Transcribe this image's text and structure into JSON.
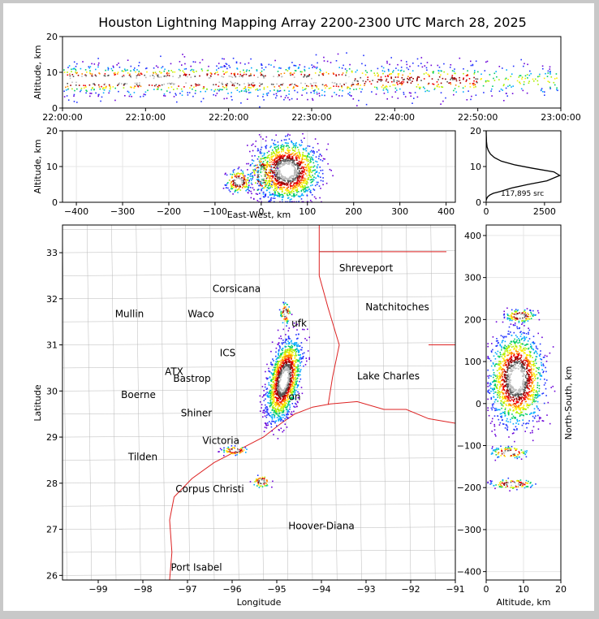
{
  "title": "Houston Lightning Mapping Array 2200-2300 UTC March 28, 2025",
  "colors": {
    "density": [
      "#6a00d8",
      "#2233ff",
      "#00aaff",
      "#00cc66",
      "#aaee00",
      "#ffee00",
      "#ff8800",
      "#ee0000",
      "#990000",
      "#555555",
      "#bbbbbb",
      "#ffffff"
    ],
    "coast": "#dd2222",
    "counties": "#b8b8b8",
    "grid": "#e6e6e6"
  },
  "chart_data": [
    {
      "type": "scatter",
      "name": "time-height",
      "xlabel": "",
      "ylabel": "Altitude, km",
      "xticks": [
        "22:00:00",
        "22:10:00",
        "22:20:00",
        "22:30:00",
        "22:40:00",
        "22:50:00",
        "23:00:00"
      ],
      "xlim_minutes": [
        0,
        60
      ],
      "ylim": [
        0,
        20
      ],
      "yticks": [
        0,
        10,
        20
      ]
    },
    {
      "type": "scatter",
      "name": "east-west-altitude",
      "xlabel": "East-West, km",
      "ylabel": "Altitude, km",
      "xlim": [
        -430,
        420
      ],
      "xticks": [
        -400,
        -300,
        -200,
        -100,
        0,
        100,
        200,
        300,
        400
      ],
      "ylim": [
        0,
        20
      ],
      "yticks": [
        0,
        10,
        20
      ]
    },
    {
      "type": "line",
      "name": "altitude-histogram",
      "annotation": "117,895 src",
      "xlim": [
        0,
        3200
      ],
      "xticks": [
        0,
        2500
      ],
      "ylim": [
        0,
        20
      ],
      "yticks": [
        0,
        10,
        20
      ],
      "x": [
        0,
        20,
        60,
        150,
        300,
        600,
        1100,
        1800,
        2600,
        3150,
        2900,
        2000,
        1200,
        650,
        350,
        180,
        90,
        40,
        15,
        5,
        0
      ],
      "y": [
        0.5,
        1,
        1.5,
        2,
        2.5,
        3,
        4,
        5,
        6,
        7.5,
        8.5,
        9.5,
        10.5,
        11.5,
        12.5,
        13.5,
        14.5,
        15.5,
        17,
        19,
        20
      ]
    },
    {
      "type": "scatter",
      "name": "plan-view",
      "xlabel": "Longitude",
      "ylabel": "Latitude",
      "xlim": [
        -99.8,
        -91
      ],
      "ylim": [
        25.9,
        33.6
      ],
      "xticks": [
        -99,
        -98,
        -97,
        -96,
        -95,
        -94,
        -93,
        -92,
        -91
      ],
      "yticks": [
        26,
        27,
        28,
        29,
        30,
        31,
        32,
        33
      ]
    },
    {
      "type": "scatter",
      "name": "altitude-north-south",
      "xlabel": "Altitude, km",
      "ylabel": "North-South, km",
      "xlim": [
        0,
        20
      ],
      "xticks": [
        0,
        10,
        20
      ],
      "ylim": [
        -420,
        425
      ],
      "yticks": [
        -400,
        -300,
        -200,
        -100,
        0,
        100,
        200,
        300,
        400
      ]
    }
  ],
  "map_labels": [
    {
      "text": "Shreveport",
      "lon": -93.0,
      "lat": 32.6,
      "color": "#000000"
    },
    {
      "text": "Corsicana",
      "lon": -95.9,
      "lat": 32.15,
      "color": "#000000"
    },
    {
      "text": "Natchitoches",
      "lon": -92.3,
      "lat": 31.75,
      "color": "#000000"
    },
    {
      "text": "Mullin",
      "lon": -98.3,
      "lat": 31.6,
      "color": "#ff8c3a"
    },
    {
      "text": "Waco",
      "lon": -96.7,
      "lat": 31.6,
      "color": "#000000"
    },
    {
      "text": "ufk",
      "lon": -94.5,
      "lat": 31.4,
      "color": "#000000"
    },
    {
      "text": "ICS",
      "lon": -96.1,
      "lat": 30.75,
      "color": "#8b1a1a"
    },
    {
      "text": "ATX",
      "lon": -97.3,
      "lat": 30.35,
      "color": "#ff8c3a"
    },
    {
      "text": "Bastrop",
      "lon": -96.9,
      "lat": 30.2,
      "color": "#000000"
    },
    {
      "text": "Lake Charles",
      "lon": -92.5,
      "lat": 30.25,
      "color": "#000000"
    },
    {
      "text": "Boerne",
      "lon": -98.1,
      "lat": 29.85,
      "color": "#000000"
    },
    {
      "text": "on",
      "lon": -94.6,
      "lat": 29.8,
      "color": "#ff9900"
    },
    {
      "text": "Shiner",
      "lon": -96.8,
      "lat": 29.45,
      "color": "#000000"
    },
    {
      "text": "Victoria",
      "lon": -96.25,
      "lat": 28.85,
      "color": "#000000"
    },
    {
      "text": "Tilden",
      "lon": -98.0,
      "lat": 28.5,
      "color": "#000000"
    },
    {
      "text": "Corpus Christi",
      "lon": -96.5,
      "lat": 27.8,
      "color": "#000000"
    },
    {
      "text": "Hoover-Diana",
      "lon": -94.0,
      "lat": 27.0,
      "color": "#1a1aff"
    },
    {
      "text": "Port Isabel",
      "lon": -96.8,
      "lat": 26.1,
      "color": "#000000"
    }
  ]
}
